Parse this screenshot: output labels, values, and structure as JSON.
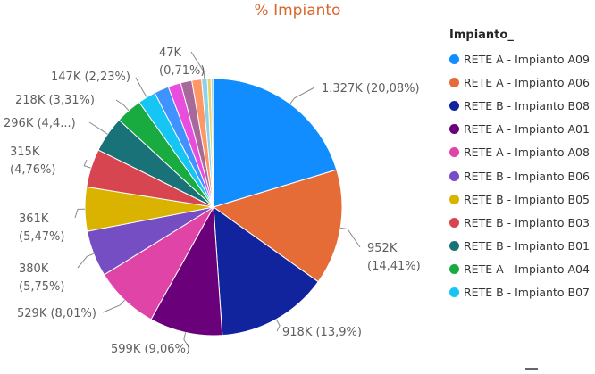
{
  "chart_data": {
    "type": "pie",
    "title": "% Impianto",
    "legend": {
      "title": "Impianto_",
      "placement": "right"
    },
    "slices": [
      {
        "name": "RETE A - Impianto A09",
        "value": 1327000,
        "percent": 20.08,
        "label": "1.327K (20,08%)",
        "color": "#118dff"
      },
      {
        "name": "RETE A - Impianto A06",
        "value": 952000,
        "percent": 14.41,
        "label": "952K (14,41%)",
        "color": "#e66c37"
      },
      {
        "name": "RETE B - Impianto B08",
        "value": 918000,
        "percent": 13.9,
        "label": "918K (13,9%)",
        "color": "#12239e"
      },
      {
        "name": "RETE A - Impianto A01",
        "value": 599000,
        "percent": 9.06,
        "label": "599K (9,06%)",
        "color": "#6b007b"
      },
      {
        "name": "RETE A - Impianto A08",
        "value": 529000,
        "percent": 8.01,
        "label": "529K (8,01%)",
        "color": "#e044a7"
      },
      {
        "name": "RETE B - Impianto B06",
        "value": 380000,
        "percent": 5.75,
        "label": "380K (5,75%)",
        "color": "#744ec2"
      },
      {
        "name": "RETE B - Impianto B05",
        "value": 361000,
        "percent": 5.47,
        "label": "361K (5,47%)",
        "color": "#d9b300"
      },
      {
        "name": "RETE B - Impianto B03",
        "value": 315000,
        "percent": 4.76,
        "label": "315K (4,76%)",
        "color": "#d64550"
      },
      {
        "name": "RETE B - Impianto B01",
        "value": 296000,
        "percent": 4.48,
        "label": "296K (4,4...)",
        "color": "#197278"
      },
      {
        "name": "RETE A - Impianto A04",
        "value": 218000,
        "percent": 3.31,
        "label": "218K (3,31%)",
        "color": "#1aab40"
      },
      {
        "name": "RETE B - Impianto B07",
        "value": 147000,
        "percent": 2.23,
        "label": "147K (2,23%)",
        "color": "#15c6f4"
      },
      {
        "name": "",
        "value": 120000,
        "percent": 1.8,
        "label": "",
        "color": "#4092ff"
      },
      {
        "name": "",
        "value": 105000,
        "percent": 1.6,
        "label": "",
        "color": "#e74ede"
      },
      {
        "name": "",
        "value": 92000,
        "percent": 1.4,
        "label": "",
        "color": "#a66999"
      },
      {
        "name": "",
        "value": 80000,
        "percent": 1.2,
        "label": "",
        "color": "#fe9666"
      },
      {
        "name": "",
        "value": 47000,
        "percent": 0.71,
        "label": "47K (0,71%)",
        "color": "#8ad4eb"
      },
      {
        "name": "",
        "value": 30000,
        "percent": 0.45,
        "label": "",
        "color": "#e8d166"
      },
      {
        "name": "",
        "value": 20000,
        "percent": 0.3,
        "label": "",
        "color": "#a0d1ff"
      }
    ],
    "label_lines": [
      {
        "slice": 0,
        "lines": [
          "1.327K (20,08%)"
        ]
      },
      {
        "slice": 1,
        "lines": [
          "952K",
          "(14,41%)"
        ]
      },
      {
        "slice": 2,
        "lines": [
          "918K (13,9%)"
        ]
      },
      {
        "slice": 3,
        "lines": [
          "599K (9,06%)"
        ]
      },
      {
        "slice": 4,
        "lines": [
          "529K (8,01%)"
        ]
      },
      {
        "slice": 5,
        "lines": [
          "380K",
          "(5,75%)"
        ]
      },
      {
        "slice": 6,
        "lines": [
          "361K",
          "(5,47%)"
        ]
      },
      {
        "slice": 7,
        "lines": [
          "315K",
          "(4,76%)"
        ]
      },
      {
        "slice": 8,
        "lines": [
          "296K (4,4...)"
        ]
      },
      {
        "slice": 9,
        "lines": [
          "218K (3,31%)"
        ]
      },
      {
        "slice": 10,
        "lines": [
          "147K (2,23%)"
        ]
      },
      {
        "slice": 15,
        "lines": [
          "47K",
          "(0,71%)"
        ]
      }
    ],
    "legend_items": [
      {
        "label": "RETE A - Impianto A09",
        "color": "#118dff"
      },
      {
        "label": "RETE A - Impianto A06",
        "color": "#e66c37"
      },
      {
        "label": "RETE B - Impianto B08",
        "color": "#12239e"
      },
      {
        "label": "RETE A - Impianto A01",
        "color": "#6b007b"
      },
      {
        "label": "RETE A - Impianto A08",
        "color": "#e044a7"
      },
      {
        "label": "RETE B - Impianto B06",
        "color": "#744ec2"
      },
      {
        "label": "RETE B - Impianto B05",
        "color": "#d9b300"
      },
      {
        "label": "RETE B - Impianto B03",
        "color": "#d64550"
      },
      {
        "label": "RETE B - Impianto B01",
        "color": "#197278"
      },
      {
        "label": "RETE A - Impianto A04",
        "color": "#1aab40"
      },
      {
        "label": "RETE B - Impianto B07",
        "color": "#15c6f4"
      }
    ]
  }
}
